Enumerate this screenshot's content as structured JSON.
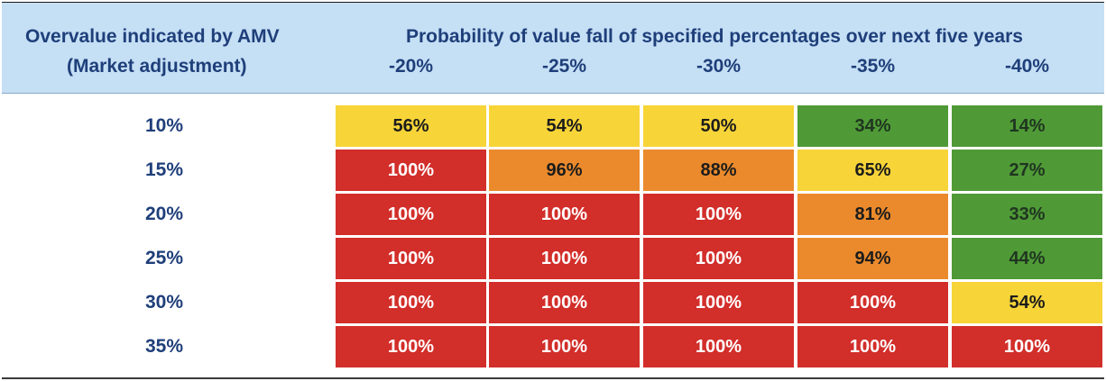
{
  "chart_data": {
    "type": "table",
    "row_header": {
      "line1": "Overvalue indicated by AMV",
      "line2": "(Market adjustment)"
    },
    "column_group_title": "Probability of value fall of specified percentages over next five years",
    "columns": [
      "-20%",
      "-25%",
      "-30%",
      "-35%",
      "-40%"
    ],
    "rows": [
      {
        "label": "10%",
        "values": [
          "56%",
          "54%",
          "50%",
          "34%",
          "14%"
        ],
        "colors": [
          "yellow",
          "yellow",
          "yellow",
          "green",
          "green"
        ]
      },
      {
        "label": "15%",
        "values": [
          "100%",
          "96%",
          "88%",
          "65%",
          "27%"
        ],
        "colors": [
          "red",
          "orange",
          "orange",
          "yellow",
          "green"
        ]
      },
      {
        "label": "20%",
        "values": [
          "100%",
          "100%",
          "100%",
          "81%",
          "33%"
        ],
        "colors": [
          "red",
          "red",
          "red",
          "orange",
          "green"
        ]
      },
      {
        "label": "25%",
        "values": [
          "100%",
          "100%",
          "100%",
          "94%",
          "44%"
        ],
        "colors": [
          "red",
          "red",
          "red",
          "orange",
          "green"
        ]
      },
      {
        "label": "30%",
        "values": [
          "100%",
          "100%",
          "100%",
          "100%",
          "54%"
        ],
        "colors": [
          "red",
          "red",
          "red",
          "red",
          "yellow"
        ]
      },
      {
        "label": "35%",
        "values": [
          "100%",
          "100%",
          "100%",
          "100%",
          "100%"
        ],
        "colors": [
          "red",
          "red",
          "red",
          "red",
          "red"
        ]
      }
    ],
    "palette": {
      "red": "#d22e2a",
      "orange": "#eb8a2c",
      "yellow": "#f7d438",
      "green": "#4f9a36",
      "header_bg": "#c5dff5",
      "header_text": "#1f3f7a"
    }
  }
}
